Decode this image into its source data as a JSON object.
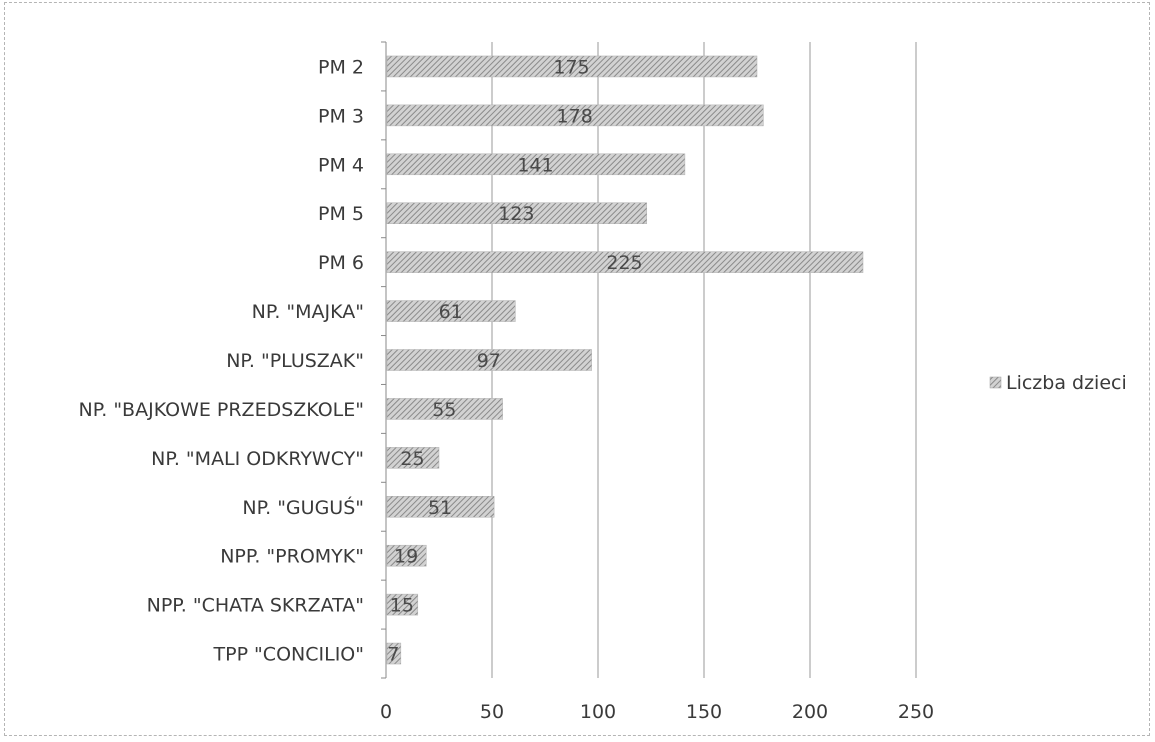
{
  "chart_data": {
    "type": "bar",
    "orientation": "horizontal",
    "title": "",
    "xlabel": "",
    "ylabel": "",
    "categories": [
      "PM 2",
      "PM 3",
      "PM 4",
      "PM 5",
      "PM 6",
      "NP. \"MAJKA\"",
      "NP. \"PLUSZAK\"",
      "NP. \"BAJKOWE PRZEDSZKOLE\"",
      "NP. \"MALI ODKRYWCY\"",
      "NP. \"GUGUŚ\"",
      "NPP. \"PROMYK\"",
      "NPP. \"CHATA SKRZATA\"",
      "TPP \"CONCILIO\""
    ],
    "series": [
      {
        "name": "Liczba dzieci",
        "values": [
          175,
          178,
          141,
          123,
          225,
          61,
          97,
          55,
          25,
          51,
          19,
          15,
          7
        ]
      }
    ],
    "xlim": [
      0,
      250
    ],
    "xticks": [
      0,
      50,
      100,
      150,
      200,
      250
    ],
    "grid": "vertical",
    "legend_position": "right",
    "data_labels": true,
    "bar_color": "#a9a9a9"
  }
}
